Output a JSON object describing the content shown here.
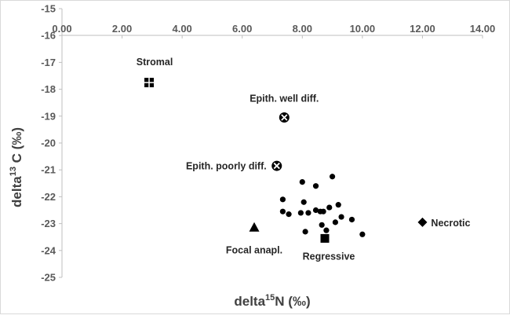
{
  "chart_data": {
    "type": "scatter",
    "title": "",
    "xlabel": {
      "base": "delta",
      "sup": "15",
      "rest": "N (‰)"
    },
    "ylabel": {
      "base": "delta",
      "sup": "13",
      "rest": " C (‰)"
    },
    "xlim": [
      0,
      14
    ],
    "ylim": [
      -25,
      -15
    ],
    "x_ticks": [
      "0.00",
      "2.00",
      "4.00",
      "6.00",
      "8.00",
      "10.00",
      "12.00",
      "14.00"
    ],
    "y_ticks": [
      "-15",
      "-16",
      "-17",
      "-18",
      "-19",
      "-20",
      "-21",
      "-22",
      "-23",
      "-24",
      "-25"
    ],
    "x_ticks_position": "top",
    "grid": false,
    "series": [
      {
        "name": "Stromal",
        "marker": "square-cross",
        "points": [
          {
            "x": 2.9,
            "y": -17.75
          }
        ]
      },
      {
        "name": "Epith. well diff.",
        "marker": "circle-x",
        "points": [
          {
            "x": 7.4,
            "y": -19.05
          }
        ]
      },
      {
        "name": "Epith. poorly diff.",
        "marker": "circle-x",
        "points": [
          {
            "x": 7.15,
            "y": -20.85
          }
        ]
      },
      {
        "name": "Focal anapl.",
        "marker": "triangle",
        "points": [
          {
            "x": 6.4,
            "y": -23.15
          }
        ]
      },
      {
        "name": "Regressive",
        "marker": "square",
        "points": [
          {
            "x": 8.75,
            "y": -23.55
          }
        ]
      },
      {
        "name": "Necrotic",
        "marker": "diamond",
        "points": [
          {
            "x": 12.0,
            "y": -22.95
          }
        ]
      },
      {
        "name": "",
        "marker": "circle",
        "points": [
          {
            "x": 8.0,
            "y": -21.45
          },
          {
            "x": 8.45,
            "y": -21.6
          },
          {
            "x": 9.0,
            "y": -21.25
          },
          {
            "x": 7.35,
            "y": -22.1
          },
          {
            "x": 8.05,
            "y": -22.2
          },
          {
            "x": 9.2,
            "y": -22.3
          },
          {
            "x": 8.9,
            "y": -22.4
          },
          {
            "x": 7.35,
            "y": -22.55
          },
          {
            "x": 7.55,
            "y": -22.65
          },
          {
            "x": 7.95,
            "y": -22.6
          },
          {
            "x": 8.2,
            "y": -22.6
          },
          {
            "x": 8.45,
            "y": -22.5
          },
          {
            "x": 8.7,
            "y": -22.55
          },
          {
            "x": 9.3,
            "y": -22.75
          },
          {
            "x": 9.65,
            "y": -22.85
          },
          {
            "x": 8.6,
            "y": -22.55
          },
          {
            "x": 9.1,
            "y": -22.95
          },
          {
            "x": 8.65,
            "y": -23.05
          },
          {
            "x": 8.1,
            "y": -23.3
          },
          {
            "x": 10.0,
            "y": -23.4
          },
          {
            "x": 8.8,
            "y": -23.25
          }
        ]
      }
    ],
    "annotations": [
      {
        "text": "Stromal",
        "series": 0
      },
      {
        "text": "Epith. well diff.",
        "series": 1
      },
      {
        "text": "Epith. poorly diff.",
        "series": 2
      },
      {
        "text": "Focal anapl.",
        "series": 3
      },
      {
        "text": "Regressive",
        "series": 4
      },
      {
        "text": "Necrotic",
        "series": 5
      }
    ]
  }
}
